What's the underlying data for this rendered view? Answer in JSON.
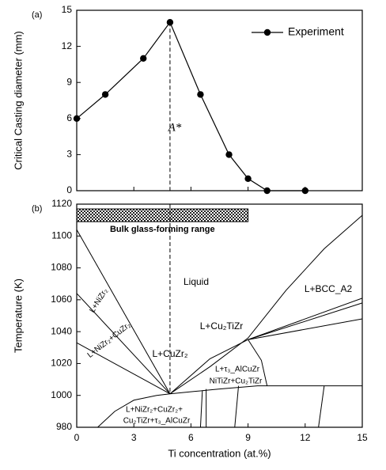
{
  "chart_data": [
    {
      "type": "line",
      "panel_label": "(a)",
      "ylabel": "Critical Casting diameter (mm)",
      "xlim": [
        0,
        15
      ],
      "xticks": [
        0,
        3,
        6,
        9,
        12,
        15
      ],
      "ylim": [
        0,
        15
      ],
      "yticks": [
        0,
        3,
        6,
        9,
        12,
        15
      ],
      "markers": true,
      "legend": "upper right",
      "vline": 4.9,
      "vline_label": "A*",
      "series": [
        {
          "name": "Experiment",
          "color": "#000000",
          "x": [
            0,
            1.5,
            3.5,
            4.9,
            6.5,
            8,
            9,
            10,
            12
          ],
          "values": [
            6,
            8,
            11,
            14,
            8,
            3,
            1,
            0,
            0
          ]
        }
      ]
    },
    {
      "type": "line",
      "panel_label": "(b)",
      "ylabel": "Temperature (K)",
      "xlabel": "Ti concentration (at.%)",
      "xlim": [
        0,
        15
      ],
      "xticks": [
        0,
        3,
        6,
        9,
        12,
        15
      ],
      "ylim": [
        980,
        1120
      ],
      "yticks": [
        980,
        1000,
        1020,
        1040,
        1060,
        1080,
        1100,
        1120
      ],
      "markers": false,
      "vline": 4.9,
      "bands": [
        {
          "label": "Bulk glass-forming range",
          "x": [
            0,
            9
          ],
          "y": [
            1109,
            1117
          ]
        }
      ],
      "annotations": [
        "Liquid",
        "L+BCC_A2",
        "L+Cu₂TiZr",
        "L+NiZr₂",
        "L+NiZr₂+CuZr₂",
        "L+CuZr₂",
        "L+τ₃_AlCuZr",
        "NiTiZr+Cu₂TiZr",
        "L+NiZr₂+CuZr₂+",
        "Cu₂TiZr+τ₃_AlCuZr"
      ],
      "series": [
        {
          "color": "#000000",
          "x": [
            0,
            4.9
          ],
          "values": [
            1104,
            1001
          ]
        },
        {
          "color": "#000000",
          "x": [
            0,
            4.9
          ],
          "values": [
            1064,
            1001
          ]
        },
        {
          "color": "#000000",
          "x": [
            0,
            4.9
          ],
          "values": [
            1033,
            1001
          ]
        },
        {
          "color": "#000000",
          "x": [
            4.9,
            7,
            9,
            11,
            13,
            15
          ],
          "values": [
            1001,
            1018,
            1036,
            1066,
            1092,
            1113
          ]
        },
        {
          "color": "#000000",
          "x": [
            4.9,
            7,
            9,
            15
          ],
          "values": [
            1001,
            1023,
            1035,
            1061
          ]
        },
        {
          "color": "#000000",
          "x": [
            9,
            15
          ],
          "values": [
            1035,
            1058
          ]
        },
        {
          "color": "#000000",
          "x": [
            9,
            15
          ],
          "values": [
            1035,
            1048
          ]
        },
        {
          "color": "#000000",
          "x": [
            9,
            9.7,
            10
          ],
          "values": [
            1035,
            1022,
            1006
          ]
        },
        {
          "color": "#000000",
          "x": [
            1.1,
            2,
            3,
            4.2,
            4.9,
            6.2,
            7.5,
            9.5,
            15
          ],
          "values": [
            980,
            990,
            997,
            1000,
            1001,
            1002.5,
            1004,
            1006,
            1006
          ]
        },
        {
          "color": "#000000",
          "x": [
            6.5,
            6.6
          ],
          "values": [
            980,
            1003
          ]
        },
        {
          "color": "#000000",
          "x": [
            6.8,
            6.8
          ],
          "values": [
            980,
            1004
          ]
        },
        {
          "color": "#000000",
          "x": [
            8.3,
            8.5
          ],
          "values": [
            980,
            1006
          ]
        },
        {
          "color": "#000000",
          "x": [
            12.7,
            13
          ],
          "values": [
            980,
            1006
          ]
        }
      ]
    }
  ]
}
